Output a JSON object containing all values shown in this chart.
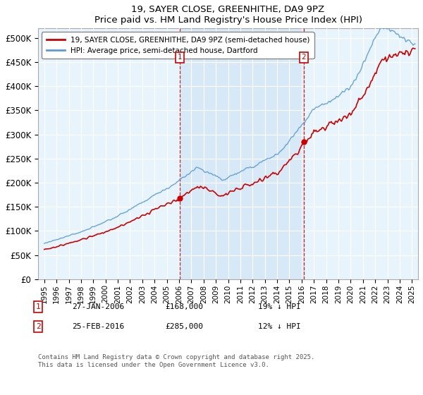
{
  "title": "19, SAYER CLOSE, GREENHITHE, DA9 9PZ",
  "subtitle": "Price paid vs. HM Land Registry's House Price Index (HPI)",
  "legend_line1": "19, SAYER CLOSE, GREENHITHE, DA9 9PZ (semi-detached house)",
  "legend_line2": "HPI: Average price, semi-detached house, Dartford",
  "footnote": "Contains HM Land Registry data © Crown copyright and database right 2025.\nThis data is licensed under the Open Government Licence v3.0.",
  "marker1_date": "27-JAN-2006",
  "marker1_price": 168000,
  "marker1_hpi": 209000,
  "marker1_label": "19% ↓ HPI",
  "marker2_date": "25-FEB-2016",
  "marker2_price": 285000,
  "marker2_hpi": 321000,
  "marker2_label": "12% ↓ HPI",
  "sale1_year": 2006.08,
  "sale2_year": 2016.17,
  "ylim": [
    0,
    520000
  ],
  "xlim": [
    1994.5,
    2025.5
  ],
  "yticks": [
    0,
    50000,
    100000,
    150000,
    200000,
    250000,
    300000,
    350000,
    400000,
    450000,
    500000
  ],
  "hpi_color": "#5b9bd5",
  "price_color": "#cc0000",
  "marker_color": "#cc0000",
  "shade_color": "#cce0f5",
  "bg_color": "#e8f4fc",
  "grid_color": "#ffffff",
  "fig_bg": "#ffffff"
}
